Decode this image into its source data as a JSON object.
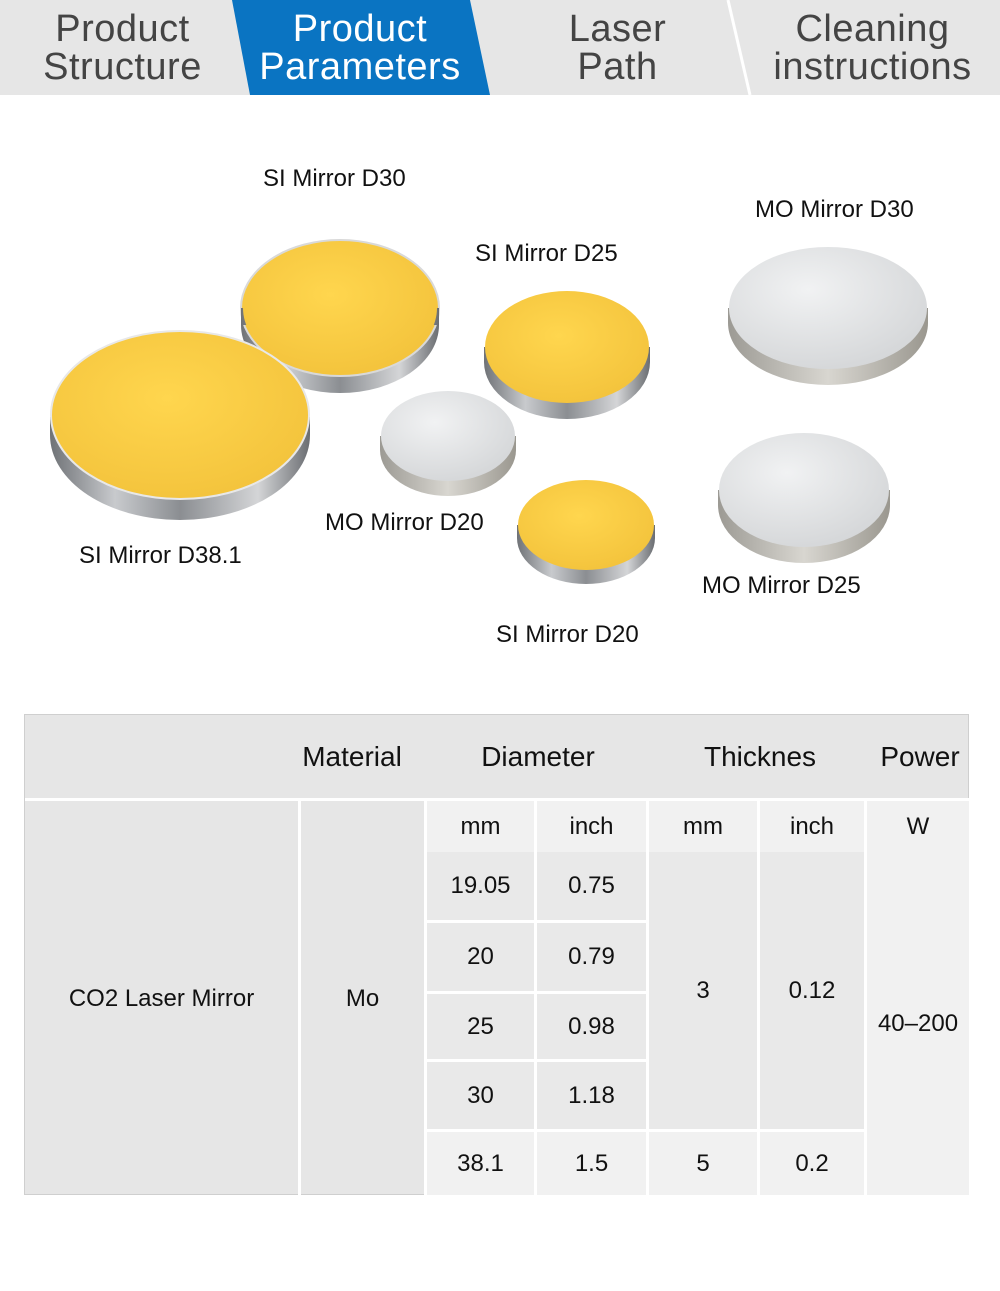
{
  "tabs": [
    {
      "label": "Product\nStructure",
      "active": false
    },
    {
      "label": "Product\nParameters",
      "active": true
    },
    {
      "label": "Laser\nPath",
      "active": false
    },
    {
      "label": "Cleaning\ninstructions",
      "active": false
    }
  ],
  "colors": {
    "tab_active": "#0a74c2",
    "tab_bg": "#e6e6e6",
    "gold": "#f7c842",
    "silver": "#e2e3e5",
    "table_bg": "#e6e6e6"
  },
  "mirrors": [
    {
      "label": "SI Mirror D30",
      "coating": "gold"
    },
    {
      "label": "SI Mirror D25",
      "coating": "gold"
    },
    {
      "label": "MO Mirror D30",
      "coating": "silver"
    },
    {
      "label": "SI Mirror D38.1",
      "coating": "gold"
    },
    {
      "label": "MO Mirror D20",
      "coating": "silver"
    },
    {
      "label": "SI Mirror D20",
      "coating": "gold"
    },
    {
      "label": "MO Mirror D25",
      "coating": "silver"
    }
  ],
  "table": {
    "headers": {
      "material": "Material",
      "diameter": "Diameter",
      "thickness": "Thicknes",
      "power": "Power"
    },
    "units": {
      "diameter_mm": "mm",
      "diameter_inch": "inch",
      "thickness_mm": "mm",
      "thickness_inch": "inch",
      "power_w": "W"
    },
    "product": "CO2 Laser Mirror",
    "material": "Mo",
    "rows": [
      {
        "mm": "19.05",
        "inch": "0.75"
      },
      {
        "mm": "20",
        "inch": "0.79"
      },
      {
        "mm": "25",
        "inch": "0.98"
      },
      {
        "mm": "30",
        "inch": "1.18"
      },
      {
        "mm": "38.1",
        "inch": "1.5"
      }
    ],
    "thickness_a": {
      "mm": "3",
      "inch": "0.12"
    },
    "thickness_b": {
      "mm": "5",
      "inch": "0.2"
    },
    "power": "40–200"
  }
}
